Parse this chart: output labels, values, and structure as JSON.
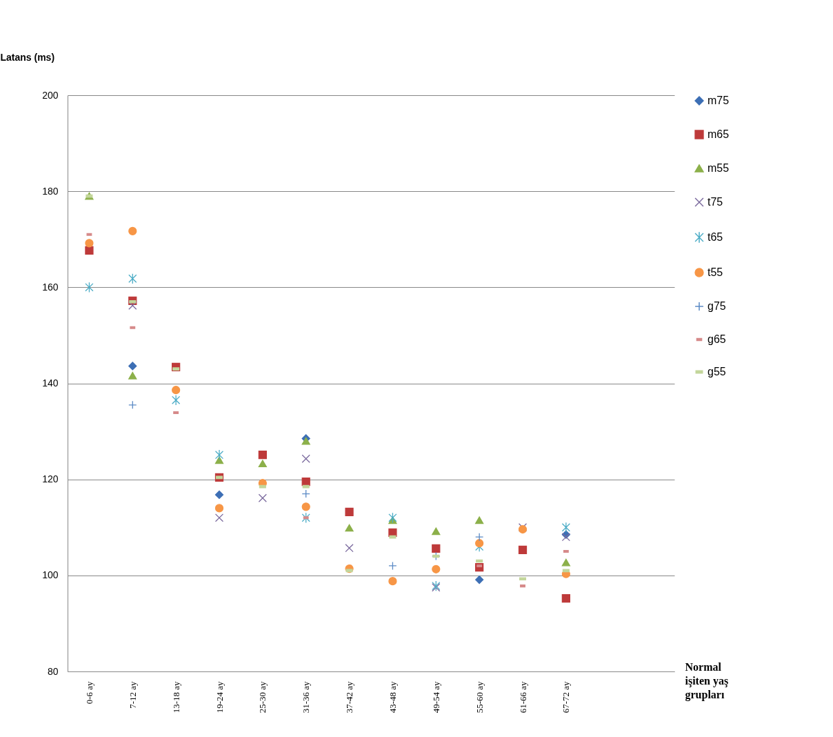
{
  "chart_data": {
    "type": "scatter",
    "ylabel": "Latans (ms)",
    "xlabel": "Normal işiten yaş grupları",
    "categories": [
      "0-6 ay",
      "7-12 ay",
      "13-18 ay",
      "19-24 ay",
      "25-30 ay",
      "31-36 ay",
      "37-42 ay",
      "43-48 ay",
      "49-54 ay",
      "55-60 ay",
      "61-66 ay",
      "67-72 ay",
      null,
      null
    ],
    "ylim": [
      80,
      200
    ],
    "yticks": [
      80,
      100,
      120,
      140,
      160,
      180,
      200
    ],
    "grid": "y",
    "legend": "right",
    "series": [
      {
        "name": "m75",
        "color": "#3d6fb5",
        "marker": "diamond",
        "values": [
          null,
          143.6,
          null,
          116.8,
          null,
          128.5,
          null,
          null,
          null,
          99.1,
          null,
          108.5,
          null,
          null
        ]
      },
      {
        "name": "m65",
        "color": "#be3a3a",
        "marker": "square",
        "values": [
          167.7,
          157.2,
          143.4,
          120.4,
          125.1,
          119.5,
          113.2,
          108.9,
          105.6,
          101.7,
          105.3,
          95.2,
          null,
          null
        ]
      },
      {
        "name": "m55",
        "color": "#8cb04a",
        "marker": "triangle",
        "values": [
          179,
          141.6,
          null,
          124,
          123.3,
          128,
          109.9,
          111.5,
          109.2,
          111.5,
          null,
          102.7,
          null,
          null
        ]
      },
      {
        "name": "t75",
        "color": "#7b6a9e",
        "marker": "cross",
        "values": [
          null,
          156.2,
          null,
          112,
          116.1,
          124.3,
          105.7,
          null,
          97.5,
          null,
          110,
          108,
          null,
          null
        ]
      },
      {
        "name": "t65",
        "color": "#4bacc6",
        "marker": "cross",
        "values": [
          160,
          161.8,
          136.5,
          125.1,
          null,
          112,
          null,
          112,
          97.8,
          106,
          null,
          110,
          null,
          null
        ]
      },
      {
        "name": "t55",
        "color": "#f79646",
        "marker": "circle",
        "values": [
          169.2,
          171.7,
          138.6,
          114,
          119.2,
          114.3,
          101.4,
          98.8,
          101.3,
          106.7,
          109.6,
          100.3,
          null,
          null
        ]
      },
      {
        "name": "g75",
        "color": "#5b8ac5",
        "marker": "cross",
        "values": [
          null,
          135.5,
          null,
          null,
          null,
          117,
          null,
          102,
          104,
          108,
          null,
          null,
          null,
          null
        ]
      },
      {
        "name": "g65",
        "color": "#d68a8a",
        "marker": "square",
        "values": [
          171,
          151.6,
          133.9,
          null,
          null,
          112,
          null,
          null,
          null,
          102,
          97.8,
          105,
          null,
          null
        ]
      },
      {
        "name": "g55",
        "color": "#c3d69b",
        "marker": "square",
        "values": [
          179,
          157,
          143,
          120.4,
          118.5,
          118.5,
          101,
          108,
          104,
          103,
          99.3,
          101,
          null,
          null
        ]
      }
    ]
  }
}
